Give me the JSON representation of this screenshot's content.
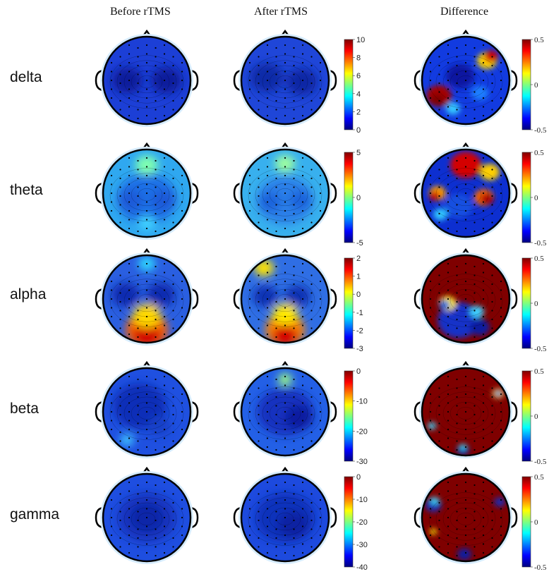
{
  "columns": {
    "before": "Before rTMS",
    "after": "After rTMS",
    "difference": "Difference"
  },
  "rows": [
    {
      "label": "delta",
      "after_scale": [
        "10",
        "8",
        "6",
        "4",
        "2",
        "0"
      ],
      "diff_scale": [
        "0.5",
        "0",
        "-0.5"
      ]
    },
    {
      "label": "theta",
      "after_scale": [
        "5",
        "0",
        "-5"
      ],
      "diff_scale": [
        "0.5",
        "0",
        "-0.5"
      ]
    },
    {
      "label": "alpha",
      "after_scale": [
        "2",
        "1",
        "0",
        "-1",
        "-2",
        "-3"
      ],
      "diff_scale": [
        "0.5",
        "0",
        "-0.5"
      ]
    },
    {
      "label": "beta",
      "after_scale": [
        "0",
        "-10",
        "-20",
        "-30"
      ],
      "diff_scale": [
        "0.5",
        "0",
        "-0.5"
      ]
    },
    {
      "label": "gamma",
      "after_scale": [
        "0",
        "-10",
        "-20",
        "-30",
        "-40"
      ],
      "diff_scale": [
        "0.5",
        "0",
        "-0.5"
      ]
    }
  ],
  "colormap": [
    "#00007f",
    "#0000ff",
    "#007fff",
    "#00ffff",
    "#7fff7f",
    "#ffff00",
    "#ff7f00",
    "#ff0000",
    "#7f0000"
  ]
}
